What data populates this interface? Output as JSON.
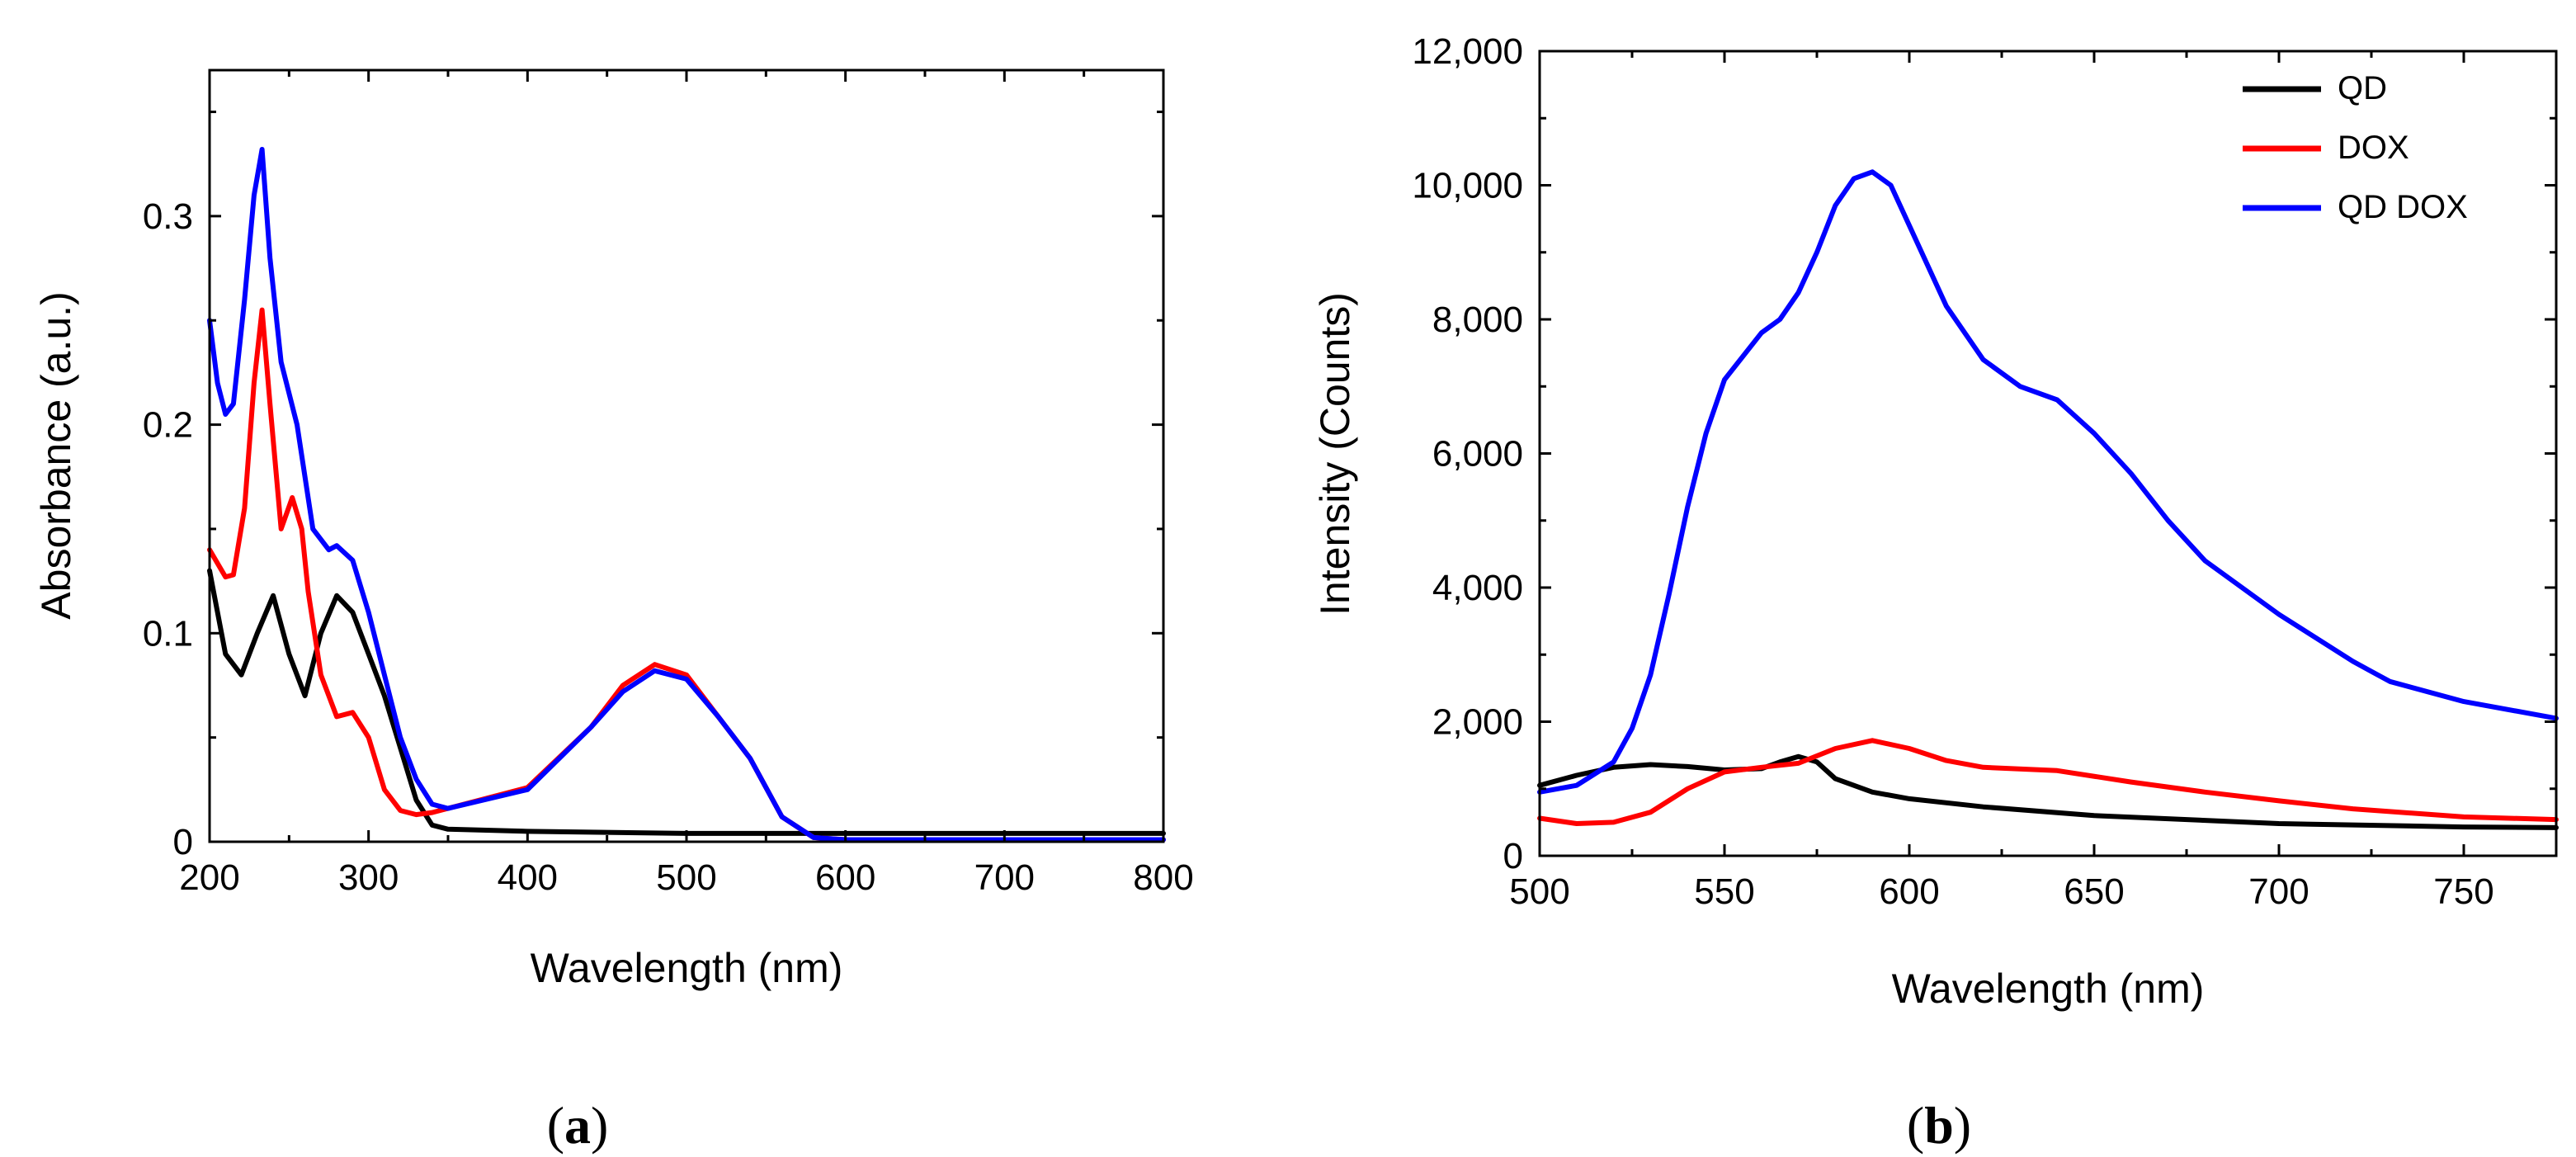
{
  "chart_data": [
    {
      "type": "line",
      "panel": "a",
      "xlabel": "Wavelength (nm)",
      "ylabel": "Absorbance (a.u.)",
      "xlim": [
        200,
        800
      ],
      "ylim": [
        0,
        0.37
      ],
      "xticks": [
        200,
        300,
        400,
        500,
        600,
        700,
        800
      ],
      "yticks": [
        0,
        0.1,
        0.2,
        0.3
      ],
      "ytick_labels": [
        "0",
        "0.1",
        "0.2",
        "0.3"
      ],
      "legend": "none",
      "series": [
        {
          "name": "QD",
          "color": "#000000",
          "x": [
            200,
            210,
            220,
            230,
            240,
            250,
            260,
            270,
            280,
            290,
            300,
            310,
            320,
            330,
            340,
            350,
            400,
            500,
            600,
            700,
            800
          ],
          "y": [
            0.13,
            0.09,
            0.08,
            0.1,
            0.118,
            0.09,
            0.07,
            0.1,
            0.118,
            0.11,
            0.09,
            0.07,
            0.045,
            0.02,
            0.008,
            0.006,
            0.005,
            0.004,
            0.004,
            0.004,
            0.004
          ]
        },
        {
          "name": "DOX",
          "color": "#ff0000",
          "x": [
            200,
            210,
            215,
            222,
            228,
            233,
            238,
            245,
            252,
            258,
            262,
            270,
            280,
            290,
            300,
            310,
            320,
            330,
            340,
            360,
            400,
            440,
            460,
            480,
            500,
            520,
            540,
            560,
            580,
            600,
            700,
            800
          ],
          "y": [
            0.14,
            0.127,
            0.128,
            0.16,
            0.22,
            0.255,
            0.21,
            0.15,
            0.165,
            0.15,
            0.12,
            0.08,
            0.06,
            0.062,
            0.05,
            0.025,
            0.015,
            0.013,
            0.014,
            0.018,
            0.026,
            0.055,
            0.075,
            0.085,
            0.08,
            0.06,
            0.04,
            0.012,
            0.002,
            0.001,
            0.001,
            0.001
          ]
        },
        {
          "name": "QD DOX",
          "color": "#0000ff",
          "x": [
            200,
            205,
            210,
            215,
            222,
            228,
            233,
            238,
            245,
            255,
            265,
            275,
            280,
            290,
            300,
            310,
            320,
            330,
            340,
            350,
            400,
            440,
            460,
            480,
            500,
            520,
            540,
            560,
            580,
            600,
            700,
            800
          ],
          "y": [
            0.25,
            0.22,
            0.205,
            0.21,
            0.26,
            0.31,
            0.332,
            0.28,
            0.23,
            0.2,
            0.15,
            0.14,
            0.142,
            0.135,
            0.11,
            0.08,
            0.05,
            0.03,
            0.018,
            0.016,
            0.025,
            0.055,
            0.072,
            0.082,
            0.078,
            0.06,
            0.04,
            0.012,
            0.002,
            0.001,
            0.001,
            0.001
          ]
        }
      ],
      "caption": "a"
    },
    {
      "type": "line",
      "panel": "b",
      "xlabel": "Wavelength (nm)",
      "ylabel": "Intensity (Counts)",
      "xlim": [
        500,
        775
      ],
      "ylim": [
        0,
        12000
      ],
      "xticks": [
        500,
        550,
        600,
        650,
        700,
        750
      ],
      "yticks": [
        0,
        2000,
        4000,
        6000,
        8000,
        10000,
        12000
      ],
      "ytick_labels": [
        "0",
        "2,000",
        "4,000",
        "6,000",
        "8,000",
        "10,000",
        "12,000"
      ],
      "legend": "top-right",
      "series": [
        {
          "name": "QD",
          "color": "#000000",
          "x": [
            500,
            510,
            520,
            530,
            540,
            550,
            560,
            565,
            570,
            575,
            580,
            590,
            600,
            620,
            650,
            700,
            750,
            775
          ],
          "y": [
            1050,
            1200,
            1320,
            1360,
            1330,
            1280,
            1300,
            1400,
            1480,
            1400,
            1150,
            950,
            850,
            730,
            600,
            480,
            430,
            420
          ]
        },
        {
          "name": "DOX",
          "color": "#ff0000",
          "x": [
            500,
            510,
            520,
            530,
            540,
            550,
            560,
            570,
            580,
            590,
            600,
            610,
            620,
            640,
            660,
            680,
            700,
            720,
            750,
            775
          ],
          "y": [
            560,
            480,
            500,
            650,
            1000,
            1250,
            1320,
            1380,
            1600,
            1720,
            1600,
            1420,
            1320,
            1270,
            1100,
            950,
            820,
            700,
            580,
            540
          ]
        },
        {
          "name": "QD DOX",
          "color": "#0000ff",
          "x": [
            500,
            510,
            520,
            525,
            530,
            535,
            540,
            545,
            550,
            560,
            565,
            570,
            575,
            580,
            585,
            590,
            595,
            600,
            610,
            620,
            630,
            640,
            650,
            660,
            670,
            680,
            700,
            720,
            725,
            730,
            750,
            775
          ],
          "y": [
            950,
            1050,
            1400,
            1900,
            2700,
            3900,
            5200,
            6300,
            7100,
            7800,
            8000,
            8400,
            9000,
            9700,
            10100,
            10200,
            10000,
            9400,
            8200,
            7400,
            7000,
            6800,
            6300,
            5700,
            5000,
            4400,
            3600,
            2900,
            2750,
            2600,
            2300,
            2050
          ]
        }
      ],
      "caption": "b"
    }
  ]
}
